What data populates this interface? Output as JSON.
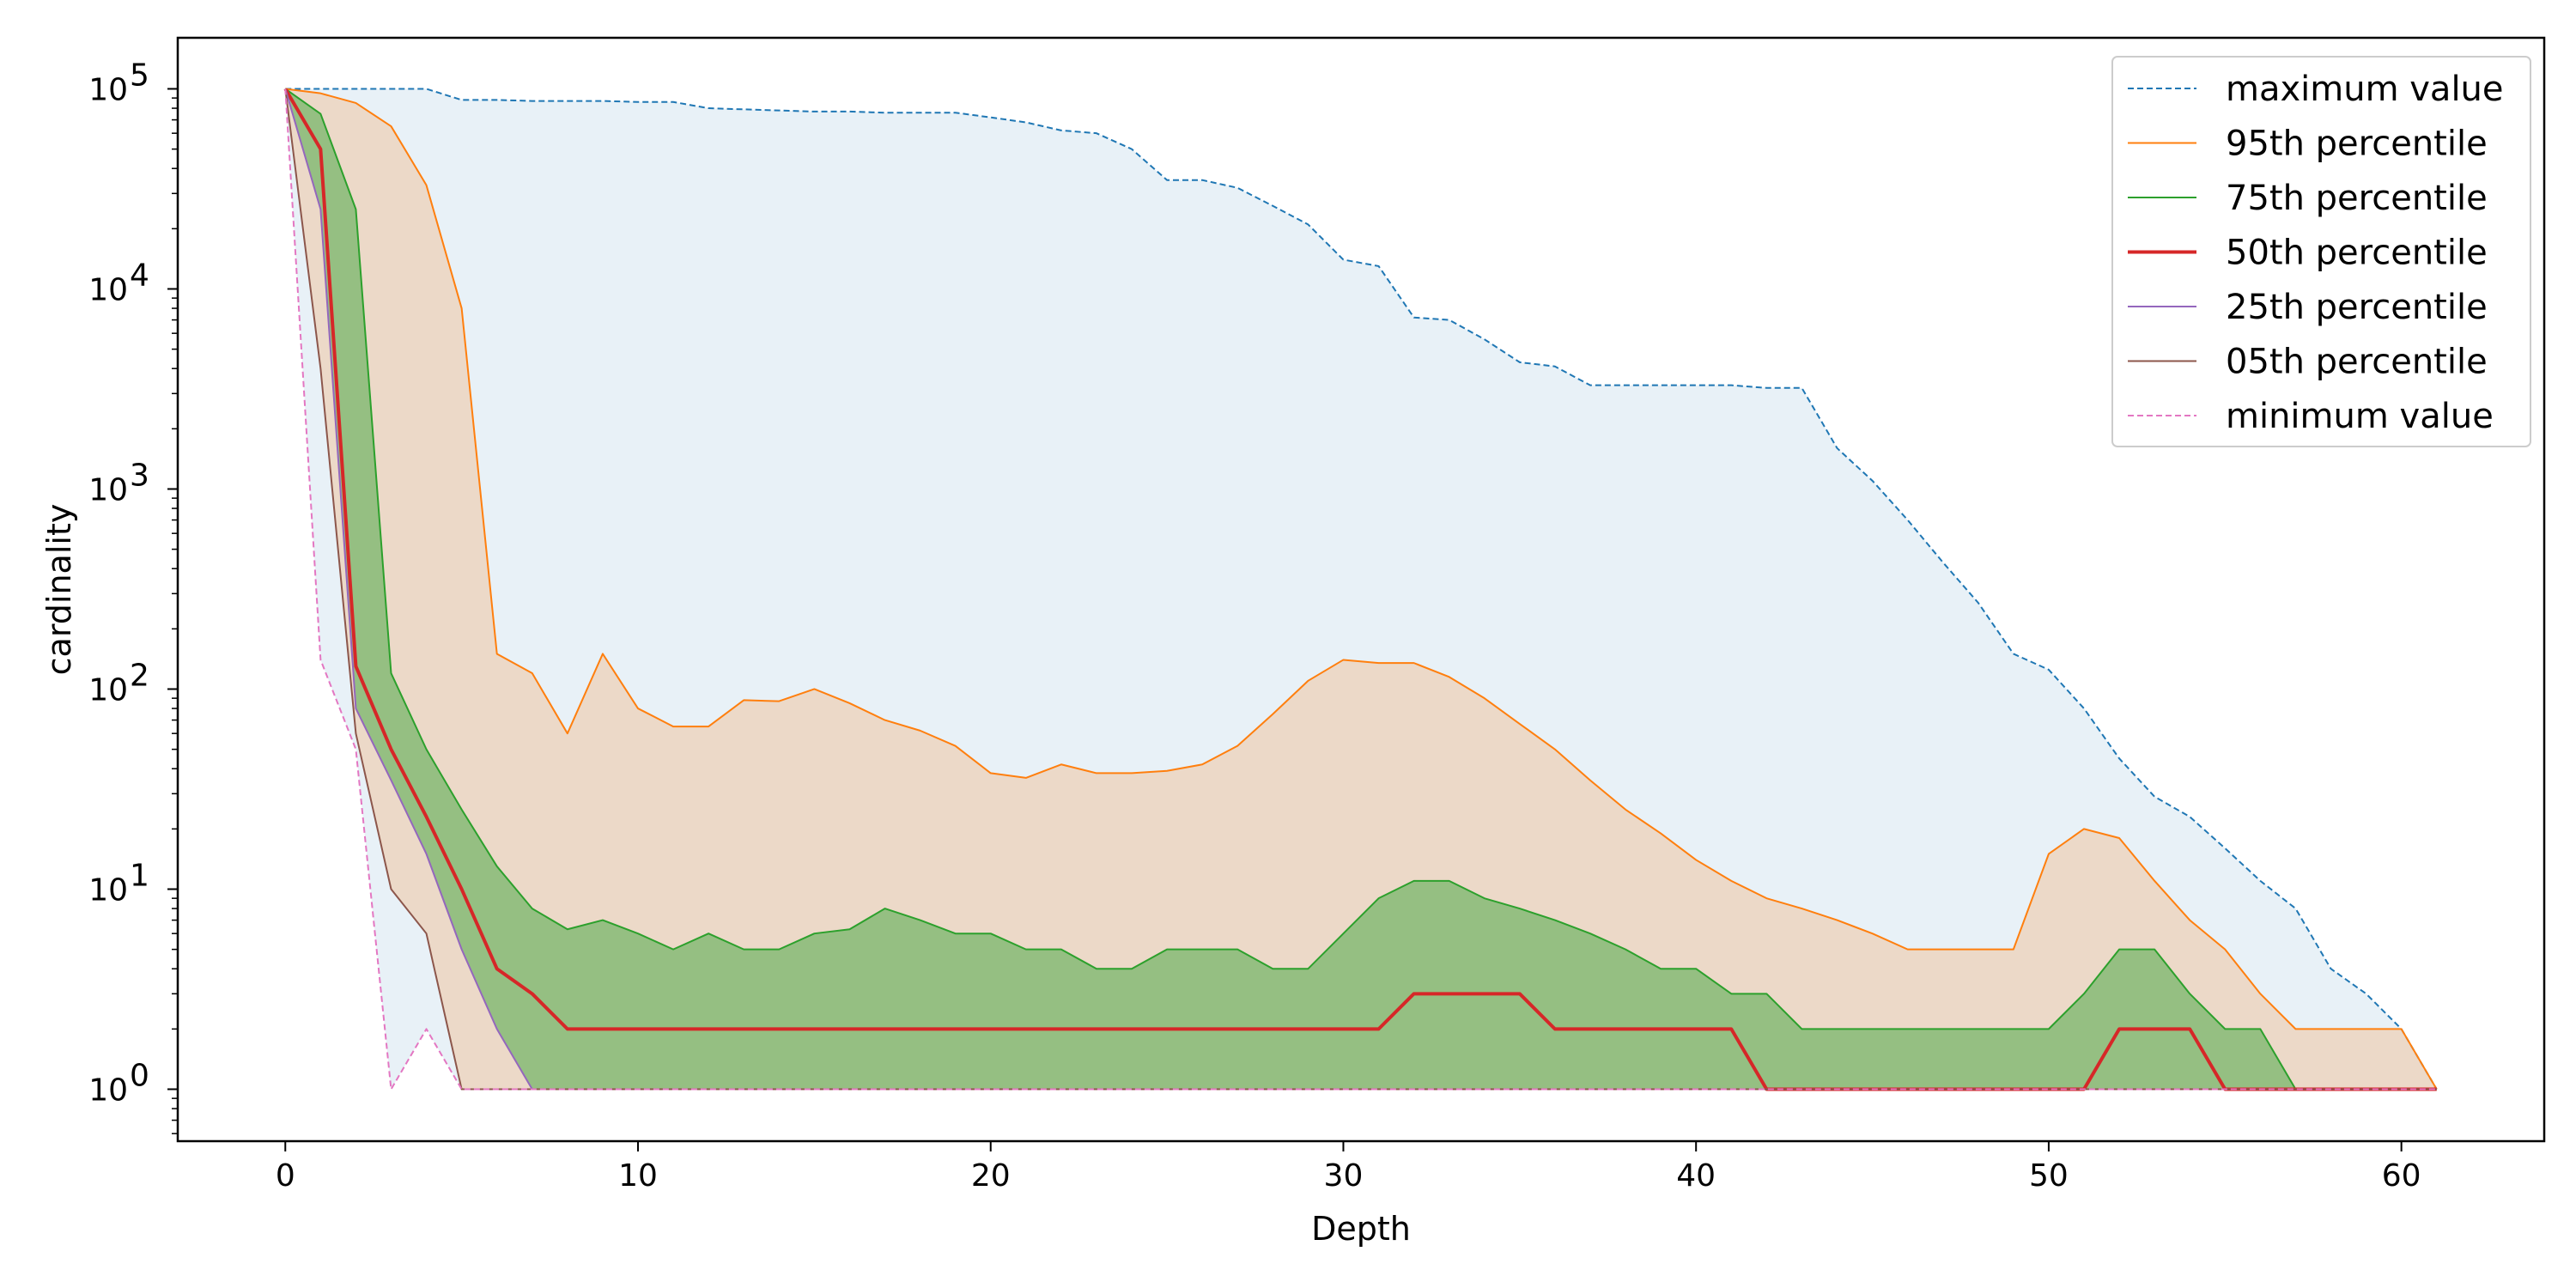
{
  "chart_data": {
    "type": "line",
    "xlabel": "Depth",
    "ylabel": "cardinality",
    "xlim": [
      -3.05,
      64.05
    ],
    "ylim": [
      0.55,
      180000
    ],
    "yscale": "log",
    "x_ticks": [
      0,
      10,
      20,
      30,
      40,
      50,
      60
    ],
    "y_ticks": [
      {
        "value": 1,
        "base": "10",
        "exp": "0"
      },
      {
        "value": 10,
        "base": "10",
        "exp": "1"
      },
      {
        "value": 100,
        "base": "10",
        "exp": "2"
      },
      {
        "value": 1000,
        "base": "10",
        "exp": "3"
      },
      {
        "value": 10000,
        "base": "10",
        "exp": "4"
      },
      {
        "value": 100000,
        "base": "10",
        "exp": "5"
      }
    ],
    "grid": false,
    "legend_position": "top-right",
    "x": [
      0,
      1,
      2,
      3,
      4,
      5,
      6,
      7,
      8,
      9,
      10,
      11,
      12,
      13,
      14,
      15,
      16,
      17,
      18,
      19,
      20,
      21,
      22,
      23,
      24,
      25,
      26,
      27,
      28,
      29,
      30,
      31,
      32,
      33,
      34,
      35,
      36,
      37,
      38,
      39,
      40,
      41,
      42,
      43,
      44,
      45,
      46,
      47,
      48,
      49,
      50,
      51,
      52,
      53,
      54,
      55,
      56,
      57,
      58,
      59,
      60,
      61
    ],
    "series": [
      {
        "name": "maximum value",
        "color": "#1f77b4",
        "style": "dashed",
        "width": 2,
        "values": [
          100000,
          100000,
          100000,
          100000,
          100000,
          88000,
          88000,
          87000,
          87000,
          87000,
          86000,
          86000,
          80000,
          79000,
          78000,
          77000,
          77000,
          76000,
          76000,
          76000,
          72000,
          68000,
          62000,
          60000,
          50000,
          35000,
          35000,
          32000,
          26000,
          21000,
          14000,
          13000,
          7200,
          7000,
          5600,
          4300,
          4100,
          3300,
          3300,
          3300,
          3300,
          3300,
          3200,
          3200,
          1600,
          1100,
          700,
          430,
          270,
          150,
          125,
          80,
          45,
          29,
          23,
          16,
          11,
          8,
          4,
          3,
          2,
          1
        ]
      },
      {
        "name": "95th percentile",
        "color": "#ff7f0e",
        "style": "solid",
        "width": 2,
        "values": [
          100000,
          95000,
          85000,
          65000,
          33000,
          8000,
          150,
          120,
          60,
          150,
          80,
          65,
          65,
          88,
          87,
          100,
          85,
          70,
          62,
          52,
          38,
          36,
          42,
          38,
          38,
          39,
          42,
          52,
          75,
          110,
          140,
          135,
          135,
          115,
          90,
          67,
          50,
          35,
          25,
          19,
          14,
          11,
          9,
          8,
          7,
          6,
          5,
          5,
          5,
          5,
          15,
          20,
          18,
          11,
          7,
          5,
          3,
          2,
          2,
          2,
          2,
          1
        ]
      },
      {
        "name": "75th percentile",
        "color": "#2ca02c",
        "style": "solid",
        "width": 2,
        "values": [
          100000,
          75000,
          25000,
          120,
          50,
          25,
          13,
          8,
          6.3,
          7,
          6,
          5,
          6,
          5,
          5,
          6,
          6.3,
          8,
          7,
          6,
          6,
          5,
          5,
          4,
          4,
          5,
          5,
          5,
          4,
          4,
          6,
          9,
          11,
          11,
          9,
          8,
          7,
          6,
          5,
          4,
          4,
          3,
          3,
          2,
          2,
          2,
          2,
          2,
          2,
          2,
          2,
          3,
          5,
          5,
          3,
          2,
          2,
          1,
          1,
          1,
          1,
          1
        ]
      },
      {
        "name": "50th percentile",
        "color": "#d62728",
        "style": "solid",
        "width": 4,
        "values": [
          100000,
          50000,
          130,
          50,
          23,
          10,
          4,
          3,
          2,
          2,
          2,
          2,
          2,
          2,
          2,
          2,
          2,
          2,
          2,
          2,
          2,
          2,
          2,
          2,
          2,
          2,
          2,
          2,
          2,
          2,
          2,
          2,
          3,
          3,
          3,
          3,
          2,
          2,
          2,
          2,
          2,
          2,
          1,
          1,
          1,
          1,
          1,
          1,
          1,
          1,
          1,
          1,
          2,
          2,
          2,
          1,
          1,
          1,
          1,
          1,
          1,
          1
        ]
      },
      {
        "name": "25th percentile",
        "color": "#9467bd",
        "style": "solid",
        "width": 2,
        "values": [
          100000,
          25000,
          80,
          35,
          15,
          5,
          2,
          1,
          1,
          1,
          1,
          1,
          1,
          1,
          1,
          1,
          1,
          1,
          1,
          1,
          1,
          1,
          1,
          1,
          1,
          1,
          1,
          1,
          1,
          1,
          1,
          1,
          1,
          1,
          1,
          1,
          1,
          1,
          1,
          1,
          1,
          1,
          1,
          1,
          1,
          1,
          1,
          1,
          1,
          1,
          1,
          1,
          1,
          1,
          1,
          1,
          1,
          1,
          1,
          1,
          1,
          1
        ]
      },
      {
        "name": "05th percentile",
        "color": "#8c564b",
        "style": "solid",
        "width": 2,
        "values": [
          100000,
          4000,
          60,
          10,
          6,
          1,
          1,
          1,
          1,
          1,
          1,
          1,
          1,
          1,
          1,
          1,
          1,
          1,
          1,
          1,
          1,
          1,
          1,
          1,
          1,
          1,
          1,
          1,
          1,
          1,
          1,
          1,
          1,
          1,
          1,
          1,
          1,
          1,
          1,
          1,
          1,
          1,
          1,
          1,
          1,
          1,
          1,
          1,
          1,
          1,
          1,
          1,
          1,
          1,
          1,
          1,
          1,
          1,
          1,
          1,
          1,
          1
        ]
      },
      {
        "name": "minimum value",
        "color": "#e377c2",
        "style": "dashed",
        "width": 2,
        "values": [
          100000,
          140,
          50,
          1,
          2,
          1,
          1,
          1,
          1,
          1,
          1,
          1,
          1,
          1,
          1,
          1,
          1,
          1,
          1,
          1,
          1,
          1,
          1,
          1,
          1,
          1,
          1,
          1,
          1,
          1,
          1,
          1,
          1,
          1,
          1,
          1,
          1,
          1,
          1,
          1,
          1,
          1,
          1,
          1,
          1,
          1,
          1,
          1,
          1,
          1,
          1,
          1,
          1,
          1,
          1,
          1,
          1,
          1,
          1,
          1,
          1,
          1
        ]
      }
    ],
    "fills": [
      {
        "between": [
          "minimum value",
          "maximum value"
        ],
        "color": "#1f77b4",
        "opacity": 0.1
      },
      {
        "between": [
          "05th percentile",
          "95th percentile"
        ],
        "color": "#ff7f0e",
        "opacity": 0.2
      },
      {
        "between": [
          "25th percentile",
          "75th percentile"
        ],
        "color": "#2ca02c",
        "opacity": 0.45
      }
    ]
  }
}
